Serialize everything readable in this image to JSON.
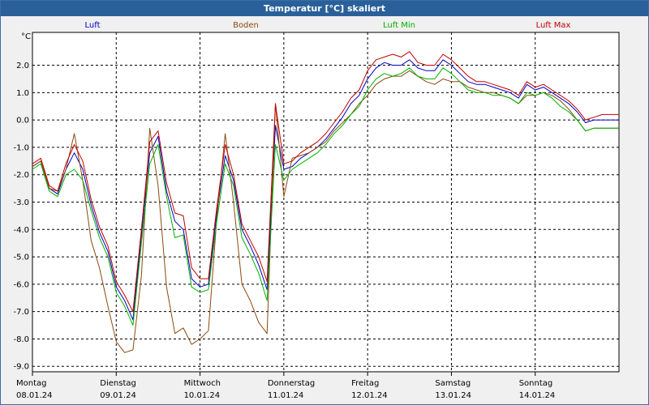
{
  "window": {
    "title": "Temperatur [°C] skaliert"
  },
  "chart_data": {
    "type": "line",
    "title": "Temperatur [°C] skaliert",
    "ylabel": "°C",
    "ylim": [
      -9.2,
      3.2
    ],
    "grid": true,
    "legend_position": "top",
    "yticks": [
      2,
      1,
      0,
      -1,
      -2,
      -3,
      -4,
      -5,
      -6,
      -7,
      -8,
      -9
    ],
    "ytick_labels": [
      "2.0",
      "1.0",
      "0.0",
      "-1.0",
      "-2.0",
      "-3.0",
      "-4.0",
      "-5.0",
      "-6.0",
      "-7.0",
      "-8.0",
      "-9.0"
    ],
    "x_range": [
      0,
      7
    ],
    "day_labels": [
      {
        "day": "Montag",
        "date": "08.01.24"
      },
      {
        "day": "Dienstag",
        "date": "09.01.24"
      },
      {
        "day": "Mittwoch",
        "date": "10.01.24"
      },
      {
        "day": "Donnerstag",
        "date": "11.01.24"
      },
      {
        "day": "Freitag",
        "date": "12.01.24"
      },
      {
        "day": "Samstag",
        "date": "13.01.24"
      },
      {
        "day": "Sonntag",
        "date": "14.01.24"
      }
    ],
    "series": [
      {
        "name": "Luft",
        "color": "#0000c0",
        "x": [
          0,
          0.1,
          0.2,
          0.3,
          0.4,
          0.5,
          0.6,
          0.7,
          0.8,
          0.9,
          1.0,
          1.1,
          1.2,
          1.3,
          1.4,
          1.5,
          1.6,
          1.7,
          1.8,
          1.9,
          2.0,
          2.1,
          2.2,
          2.3,
          2.4,
          2.5,
          2.6,
          2.7,
          2.8,
          2.9,
          3.0,
          3.1,
          3.2,
          3.3,
          3.4,
          3.5,
          3.6,
          3.7,
          3.8,
          3.9,
          4.0,
          4.1,
          4.2,
          4.3,
          4.4,
          4.5,
          4.6,
          4.7,
          4.8,
          4.9,
          5.0,
          5.1,
          5.2,
          5.3,
          5.4,
          5.5,
          5.6,
          5.7,
          5.8,
          5.9,
          6.0,
          6.1,
          6.2,
          6.3,
          6.4,
          6.5,
          6.6,
          6.7,
          6.8,
          6.9,
          7.0
        ],
        "values": [
          -1.7,
          -1.5,
          -2.5,
          -2.7,
          -1.8,
          -1.2,
          -1.8,
          -3.1,
          -4.1,
          -4.8,
          -6.1,
          -6.6,
          -7.3,
          -4.2,
          -1.2,
          -0.6,
          -2.6,
          -3.7,
          -4.0,
          -5.8,
          -6.1,
          -6.0,
          -3.4,
          -1.3,
          -2.2,
          -4.0,
          -4.6,
          -5.3,
          -6.2,
          -0.2,
          -1.8,
          -1.7,
          -1.4,
          -1.2,
          -1.0,
          -0.7,
          -0.3,
          0.1,
          0.6,
          0.9,
          1.5,
          1.9,
          2.1,
          2.0,
          2.0,
          2.2,
          1.9,
          1.8,
          1.8,
          2.2,
          2.0,
          1.7,
          1.4,
          1.3,
          1.3,
          1.2,
          1.1,
          1.0,
          0.8,
          1.3,
          1.1,
          1.2,
          1.0,
          0.8,
          0.6,
          0.3,
          -0.1,
          0.0,
          0.0,
          0.0,
          0.0
        ]
      },
      {
        "name": "Boden",
        "color": "#8b4a10",
        "x": [
          0,
          0.1,
          0.2,
          0.3,
          0.4,
          0.5,
          0.6,
          0.7,
          0.8,
          0.9,
          1.0,
          1.1,
          1.2,
          1.3,
          1.4,
          1.5,
          1.6,
          1.7,
          1.8,
          1.9,
          2.0,
          2.1,
          2.2,
          2.3,
          2.4,
          2.5,
          2.6,
          2.7,
          2.8,
          2.9,
          3.0,
          3.1,
          3.2,
          3.3,
          3.4,
          3.5,
          3.6,
          3.7,
          3.8,
          3.9,
          4.0,
          4.1,
          4.2,
          4.3,
          4.4,
          4.5,
          4.6,
          4.7,
          4.8,
          4.9,
          5.0,
          5.1,
          5.2,
          5.3,
          5.4,
          5.5,
          5.6,
          5.7,
          5.8,
          5.9,
          6.0,
          6.1,
          6.2,
          6.3,
          6.4,
          6.5,
          6.6,
          6.7,
          6.8,
          6.9,
          7.0
        ],
        "values": [
          -1.7,
          -1.5,
          -2.5,
          -2.6,
          -1.8,
          -0.5,
          -2.2,
          -4.4,
          -5.4,
          -6.8,
          -8.1,
          -8.5,
          -8.4,
          -5.7,
          -0.3,
          -2.4,
          -6.1,
          -7.8,
          -7.6,
          -8.2,
          -8.0,
          -7.7,
          -3.6,
          -0.5,
          -3.0,
          -6.0,
          -6.6,
          -7.4,
          -7.8,
          0.6,
          -2.8,
          -1.4,
          -1.3,
          -1.2,
          -1.0,
          -0.8,
          -0.4,
          -0.1,
          0.2,
          0.6,
          0.9,
          1.3,
          1.5,
          1.6,
          1.6,
          1.8,
          1.6,
          1.4,
          1.3,
          1.5,
          1.4,
          1.4,
          1.2,
          1.1,
          1.0,
          1.0,
          0.9,
          0.8,
          0.6,
          0.9,
          0.9,
          1.0,
          0.9,
          0.7,
          0.4,
          0.0,
          -0.4,
          -0.3,
          -0.3,
          -0.3,
          -0.3
        ]
      },
      {
        "name": "Luft Min",
        "color": "#00b000",
        "x": [
          0,
          0.1,
          0.2,
          0.3,
          0.4,
          0.5,
          0.6,
          0.7,
          0.8,
          0.9,
          1.0,
          1.1,
          1.2,
          1.3,
          1.4,
          1.5,
          1.6,
          1.7,
          1.8,
          1.9,
          2.0,
          2.1,
          2.2,
          2.3,
          2.4,
          2.5,
          2.6,
          2.7,
          2.8,
          2.9,
          3.0,
          3.1,
          3.2,
          3.3,
          3.4,
          3.5,
          3.6,
          3.7,
          3.8,
          3.9,
          4.0,
          4.1,
          4.2,
          4.3,
          4.4,
          4.5,
          4.6,
          4.7,
          4.8,
          4.9,
          5.0,
          5.1,
          5.2,
          5.3,
          5.4,
          5.5,
          5.6,
          5.7,
          5.8,
          5.9,
          6.0,
          6.1,
          6.2,
          6.3,
          6.4,
          6.5,
          6.6,
          6.7,
          6.8,
          6.9,
          7.0
        ],
        "values": [
          -1.8,
          -1.6,
          -2.6,
          -2.8,
          -2.0,
          -1.8,
          -2.2,
          -3.3,
          -4.3,
          -5.0,
          -6.3,
          -6.8,
          -7.5,
          -4.5,
          -1.6,
          -0.9,
          -2.8,
          -4.3,
          -4.2,
          -6.1,
          -6.3,
          -6.2,
          -3.7,
          -1.6,
          -2.4,
          -4.3,
          -4.9,
          -5.6,
          -6.6,
          -0.9,
          -2.2,
          -1.8,
          -1.6,
          -1.4,
          -1.2,
          -0.9,
          -0.5,
          -0.2,
          0.2,
          0.5,
          1.1,
          1.5,
          1.7,
          1.6,
          1.7,
          1.9,
          1.6,
          1.5,
          1.5,
          1.9,
          1.7,
          1.4,
          1.1,
          1.0,
          1.0,
          0.9,
          0.9,
          0.8,
          0.6,
          1.0,
          0.9,
          1.0,
          0.8,
          0.5,
          0.3,
          0.0,
          -0.4,
          -0.3,
          -0.3,
          -0.3,
          -0.3
        ]
      },
      {
        "name": "Luft Max",
        "color": "#c00000",
        "x": [
          0,
          0.1,
          0.2,
          0.3,
          0.4,
          0.5,
          0.6,
          0.7,
          0.8,
          0.9,
          1.0,
          1.1,
          1.2,
          1.3,
          1.4,
          1.5,
          1.6,
          1.7,
          1.8,
          1.9,
          2.0,
          2.1,
          2.2,
          2.3,
          2.4,
          2.5,
          2.6,
          2.7,
          2.8,
          2.9,
          3.0,
          3.1,
          3.2,
          3.3,
          3.4,
          3.5,
          3.6,
          3.7,
          3.8,
          3.9,
          4.0,
          4.1,
          4.2,
          4.3,
          4.4,
          4.5,
          4.6,
          4.7,
          4.8,
          4.9,
          5.0,
          5.1,
          5.2,
          5.3,
          5.4,
          5.5,
          5.6,
          5.7,
          5.8,
          5.9,
          6.0,
          6.1,
          6.2,
          6.3,
          6.4,
          6.5,
          6.6,
          6.7,
          6.8,
          6.9,
          7.0
        ],
        "values": [
          -1.6,
          -1.4,
          -2.4,
          -2.6,
          -1.6,
          -0.9,
          -1.5,
          -2.9,
          -3.9,
          -4.6,
          -5.9,
          -6.4,
          -7.0,
          -4.0,
          -0.8,
          -0.4,
          -2.3,
          -3.4,
          -3.5,
          -5.4,
          -5.8,
          -5.8,
          -3.2,
          -0.9,
          -2.0,
          -3.8,
          -4.4,
          -5.0,
          -5.9,
          0.6,
          -1.6,
          -1.5,
          -1.2,
          -1.0,
          -0.8,
          -0.5,
          -0.1,
          0.3,
          0.8,
          1.1,
          1.8,
          2.2,
          2.3,
          2.4,
          2.3,
          2.5,
          2.1,
          2.0,
          2.0,
          2.4,
          2.2,
          1.9,
          1.6,
          1.4,
          1.4,
          1.3,
          1.2,
          1.1,
          0.9,
          1.4,
          1.2,
          1.3,
          1.1,
          0.9,
          0.7,
          0.4,
          0.0,
          0.1,
          0.2,
          0.2,
          0.2
        ]
      }
    ]
  }
}
